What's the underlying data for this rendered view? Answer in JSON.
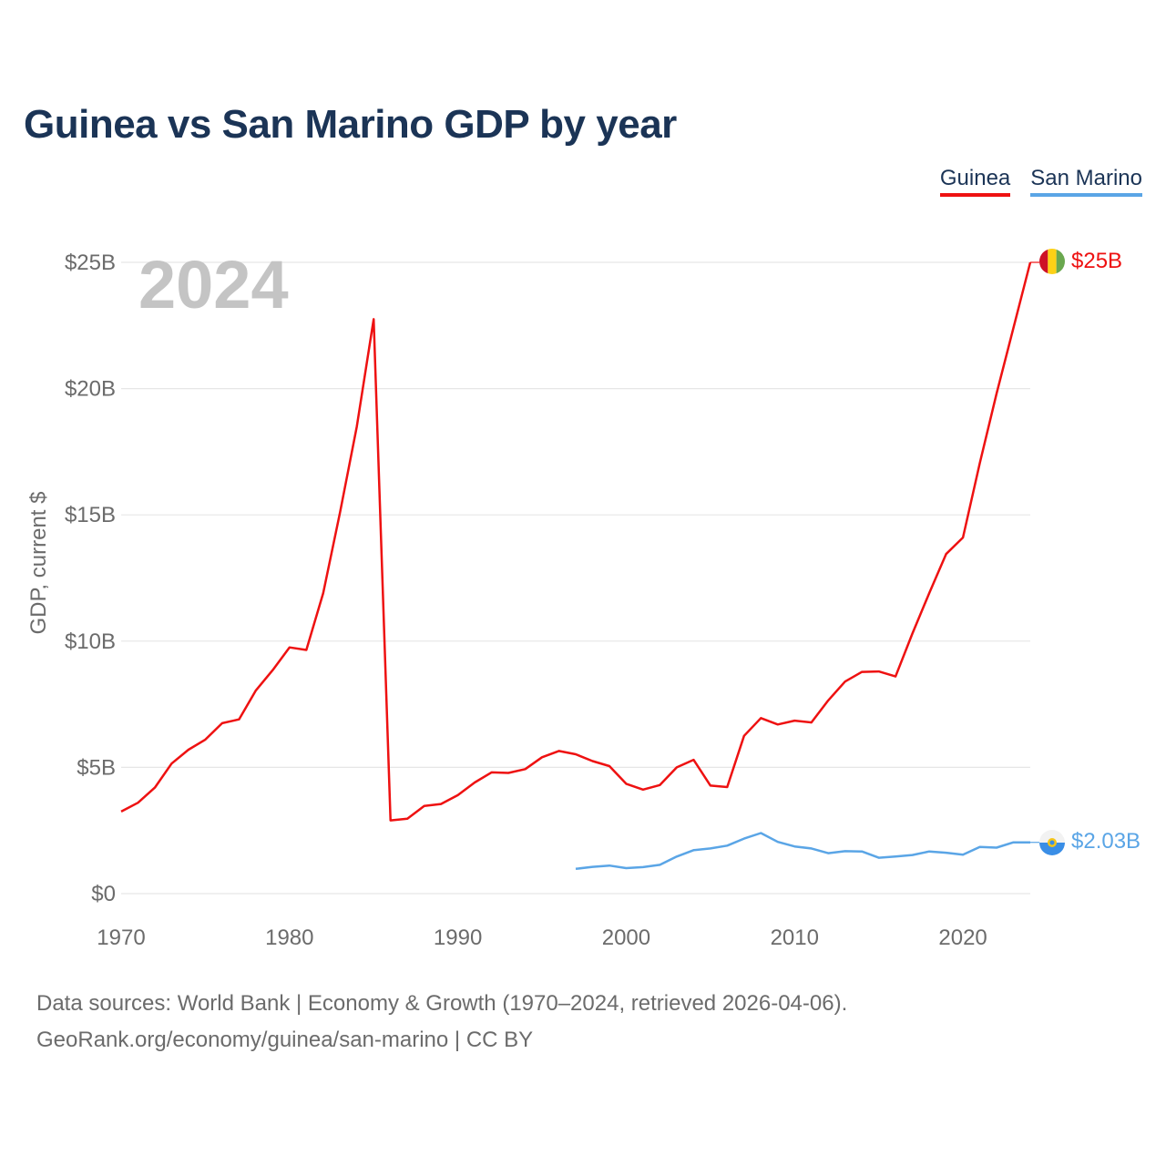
{
  "title": "Guinea vs San Marino GDP by year",
  "legend": [
    {
      "label": "Guinea",
      "color": "#ee1111"
    },
    {
      "label": "San Marino",
      "color": "#5aa5e6"
    }
  ],
  "source": {
    "line1": "Data sources: World Bank | Economy & Growth (1970–2024, retrieved 2026-04-06).",
    "line2": "GeoRank.org/economy/guinea/san-marino | CC BY"
  },
  "chart_data": {
    "type": "line",
    "title": "Guinea vs San Marino GDP by year",
    "ylabel": "GDP, current $",
    "xlabel": "",
    "year_watermark": "2024",
    "xlim": [
      1970,
      2024
    ],
    "ylim": [
      0,
      25
    ],
    "x_ticks": [
      "1970",
      "1980",
      "1990",
      "2000",
      "2010",
      "2020"
    ],
    "x_tick_values": [
      1970,
      1980,
      1990,
      2000,
      2010,
      2020
    ],
    "y_ticks": [
      "$0",
      "$5B",
      "$10B",
      "$15B",
      "$20B",
      "$25B"
    ],
    "y_tick_values": [
      0,
      5,
      10,
      15,
      20,
      25
    ],
    "grid": true,
    "legend_position": "top-right",
    "series": [
      {
        "name": "Guinea",
        "color": "#ee1111",
        "end_label": "$25B",
        "x": [
          1970,
          1971,
          1972,
          1973,
          1974,
          1975,
          1976,
          1977,
          1978,
          1979,
          1980,
          1981,
          1982,
          1983,
          1984,
          1985,
          1986,
          1987,
          1988,
          1989,
          1990,
          1991,
          1992,
          1993,
          1994,
          1995,
          1996,
          1997,
          1998,
          1999,
          2000,
          2001,
          2002,
          2003,
          2004,
          2005,
          2006,
          2007,
          2008,
          2009,
          2010,
          2011,
          2012,
          2013,
          2014,
          2015,
          2016,
          2017,
          2018,
          2019,
          2020,
          2021,
          2022,
          2023,
          2024
        ],
        "values": [
          3.25,
          3.6,
          4.2,
          5.15,
          5.7,
          6.1,
          6.75,
          6.9,
          8.05,
          8.85,
          9.75,
          9.65,
          11.9,
          15.1,
          18.5,
          22.75,
          2.9,
          2.97,
          3.47,
          3.55,
          3.9,
          4.4,
          4.8,
          4.78,
          4.93,
          5.4,
          5.65,
          5.52,
          5.25,
          5.05,
          4.35,
          4.12,
          4.3,
          5.0,
          5.3,
          4.28,
          4.22,
          6.25,
          6.95,
          6.7,
          6.85,
          6.78,
          7.65,
          8.4,
          8.78,
          8.8,
          8.6,
          10.3,
          11.9,
          13.45,
          14.1,
          17.05,
          19.8,
          22.4,
          25.0
        ]
      },
      {
        "name": "San Marino",
        "color": "#5aa5e6",
        "end_label": "$2.03B",
        "x": [
          1997,
          1998,
          1999,
          2000,
          2001,
          2002,
          2003,
          2004,
          2005,
          2006,
          2007,
          2008,
          2009,
          2010,
          2011,
          2012,
          2013,
          2014,
          2015,
          2016,
          2017,
          2018,
          2019,
          2020,
          2021,
          2022,
          2023,
          2024
        ],
        "values": [
          0.98,
          1.06,
          1.11,
          1.01,
          1.05,
          1.14,
          1.47,
          1.72,
          1.79,
          1.9,
          2.18,
          2.4,
          2.05,
          1.87,
          1.79,
          1.6,
          1.68,
          1.67,
          1.42,
          1.47,
          1.53,
          1.67,
          1.62,
          1.54,
          1.85,
          1.82,
          2.03,
          2.03
        ]
      }
    ]
  }
}
